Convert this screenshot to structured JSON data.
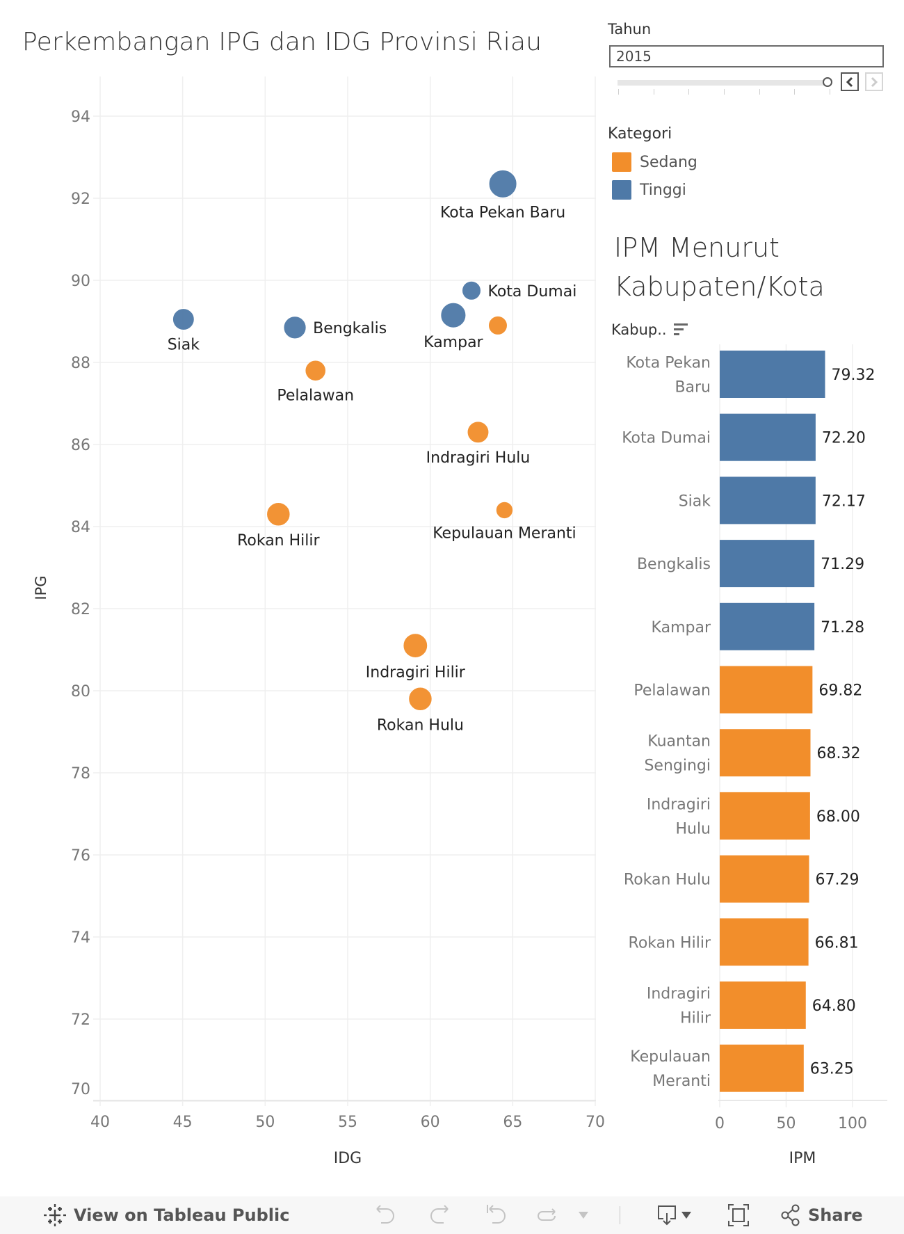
{
  "title": "Perkembangan IPG dan IDG Provinsi Riau",
  "filter": {
    "label": "Tahun",
    "selected_value": "2015",
    "slider_position": 1.0,
    "tick_count": 7,
    "prev_icon": "chevron-left-icon",
    "next_icon": "chevron-right-icon"
  },
  "legend": {
    "title": "Kategori",
    "items": [
      {
        "label": "Sedang",
        "color": "#f28e2b"
      },
      {
        "label": "Tinggi",
        "color": "#4e79a7"
      }
    ]
  },
  "bar_panel": {
    "title_line1": "IPM Menurut",
    "title_line2": "Kabupaten/Kota",
    "field_label": "Kabup..",
    "sort_icon": "sort-descending-icon"
  },
  "chart_data": [
    {
      "type": "scatter",
      "title": "Perkembangan IPG dan IDG Provinsi Riau",
      "xlabel": "IDG",
      "ylabel": "IPG",
      "xlim": [
        40,
        70
      ],
      "ylim": [
        70,
        94
      ],
      "xticks": [
        "40",
        "45",
        "50",
        "55",
        "60",
        "65",
        "70"
      ],
      "yticks": [
        "70",
        "72",
        "74",
        "76",
        "78",
        "80",
        "82",
        "84",
        "86",
        "88",
        "90",
        "92",
        "94"
      ],
      "grid": true,
      "color_legend": "Kategori",
      "size_encoding": "relative",
      "points": [
        {
          "label": "Kota Pekan Baru",
          "idg": 64.4,
          "ipg": 92.35,
          "kategori": "Tinggi",
          "size": 1.0,
          "label_pos": "below"
        },
        {
          "label": "Kota Dumai",
          "idg": 62.5,
          "ipg": 89.75,
          "kategori": "Tinggi",
          "size": 0.5,
          "label_pos": "right"
        },
        {
          "label": "Siak",
          "idg": 45.05,
          "ipg": 89.05,
          "kategori": "Tinggi",
          "size": 0.65,
          "label_pos": "below"
        },
        {
          "label": "Bengkalis",
          "idg": 51.8,
          "ipg": 88.85,
          "kategori": "Tinggi",
          "size": 0.7,
          "label_pos": "right"
        },
        {
          "label": "Kampar",
          "idg": 61.4,
          "ipg": 89.15,
          "kategori": "Tinggi",
          "size": 0.85,
          "label_pos": "below"
        },
        {
          "label": "Kuantan Singingi",
          "idg": 64.1,
          "ipg": 88.9,
          "kategori": "Sedang",
          "size": 0.5,
          "label_pos": "none"
        },
        {
          "label": "Pelalawan",
          "idg": 53.05,
          "ipg": 87.8,
          "kategori": "Sedang",
          "size": 0.6,
          "label_pos": "below"
        },
        {
          "label": "Indragiri Hulu",
          "idg": 62.9,
          "ipg": 86.3,
          "kategori": "Sedang",
          "size": 0.65,
          "label_pos": "below"
        },
        {
          "label": "Kepulauan Meranti",
          "idg": 64.5,
          "ipg": 84.4,
          "kategori": "Sedang",
          "size": 0.4,
          "label_pos": "below"
        },
        {
          "label": "Rokan Hilir",
          "idg": 50.8,
          "ipg": 84.3,
          "kategori": "Sedang",
          "size": 0.75,
          "label_pos": "below"
        },
        {
          "label": "Indragiri Hilir",
          "idg": 59.1,
          "ipg": 81.1,
          "kategori": "Sedang",
          "size": 0.8,
          "label_pos": "below"
        },
        {
          "label": "Rokan Hulu",
          "idg": 59.4,
          "ipg": 79.8,
          "kategori": "Sedang",
          "size": 0.75,
          "label_pos": "below"
        }
      ]
    },
    {
      "type": "bar",
      "orientation": "horizontal",
      "title": "IPM Menurut Kabupaten/Kota",
      "xlabel": "IPM",
      "ylabel": "Kabup..",
      "xlim": [
        0,
        120
      ],
      "xticks": [
        "0",
        "50",
        "100"
      ],
      "grid": true,
      "categories": [
        [
          "Kota Pekan",
          "Baru"
        ],
        [
          "Kota Dumai"
        ],
        [
          "Siak"
        ],
        [
          "Bengkalis"
        ],
        [
          "Kampar"
        ],
        [
          "Pelalawan"
        ],
        [
          "Kuantan",
          "Sengingi"
        ],
        [
          "Indragiri",
          "Hulu"
        ],
        [
          "Rokan Hulu"
        ],
        [
          "Rokan Hilir"
        ],
        [
          "Indragiri",
          "Hilir"
        ],
        [
          "Kepulauan",
          "Meranti"
        ]
      ],
      "values": [
        79.32,
        72.2,
        72.17,
        71.29,
        71.28,
        69.82,
        68.32,
        68.0,
        67.29,
        66.81,
        64.8,
        63.25
      ],
      "value_labels": [
        "79.32",
        "72.20",
        "72.17",
        "71.29",
        "71.28",
        "69.82",
        "68.32",
        "68.00",
        "67.29",
        "66.81",
        "64.80",
        "63.25"
      ],
      "kategori": [
        "Tinggi",
        "Tinggi",
        "Tinggi",
        "Tinggi",
        "Tinggi",
        "Sedang",
        "Sedang",
        "Sedang",
        "Sedang",
        "Sedang",
        "Sedang",
        "Sedang"
      ]
    }
  ],
  "colors": {
    "Sedang": "#f28e2b",
    "Tinggi": "#4e79a7",
    "grid": "#efefef",
    "tick_text": "#777777",
    "label_text": "#222222"
  },
  "footer": {
    "view_label": "View on Tableau Public",
    "share_label": "Share",
    "icons": [
      "tableau-logo-icon",
      "undo-icon",
      "redo-icon",
      "revert-icon",
      "refresh-icon",
      "pause-dropdown-icon",
      "download-icon",
      "fullscreen-icon",
      "share-icon"
    ]
  }
}
